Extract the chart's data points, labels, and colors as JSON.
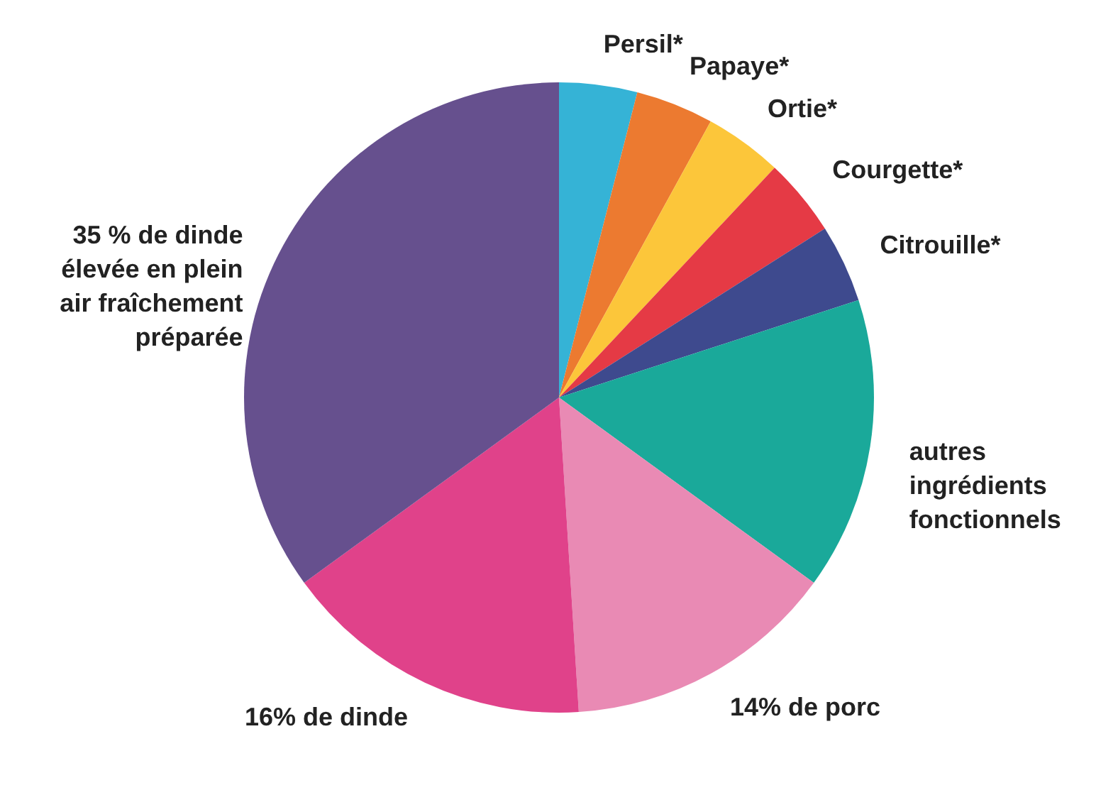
{
  "chart_data": {
    "type": "pie",
    "categories": [
      "Persil*",
      "Papaye*",
      "Ortie*",
      "Courgette*",
      "Citrouille*",
      "autres\ningrédients\nfonctionnels",
      "14% de porc",
      "16% de dinde",
      "35 % de dinde\nélevée en plein\nair fraîchement\npréparée"
    ],
    "values": [
      4,
      4,
      4,
      4,
      4,
      15,
      14,
      16,
      35
    ],
    "colors": [
      "#35b3d6",
      "#ec7a30",
      "#fcc63a",
      "#e53a45",
      "#3e4a8e",
      "#1aa99a",
      "#e98ab4",
      "#e0428a",
      "#66508e"
    ]
  }
}
